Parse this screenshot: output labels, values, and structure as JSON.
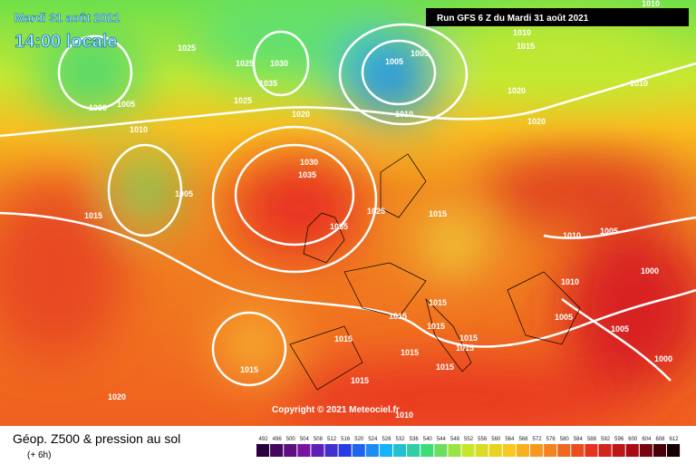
{
  "header": {
    "date": "Mardi 31 août 2021",
    "time": "14:00 locale",
    "run": "Run GFS 6 Z du Mardi 31 août 2021"
  },
  "copyright": "Copyright © 2021 Meteociel.fr",
  "legend": {
    "title": "Géop. Z500 & pression au sol",
    "lead": "(+ 6h)",
    "scale": [
      492,
      496,
      500,
      504,
      508,
      512,
      516,
      520,
      524,
      528,
      532,
      536,
      540,
      544,
      548,
      552,
      556,
      560,
      564,
      568,
      572,
      576,
      580,
      584,
      588,
      592,
      596,
      600,
      604,
      608,
      612
    ]
  },
  "isobar_labels": [
    "1025",
    "1025",
    "1030",
    "1035",
    "1025",
    "1020",
    "1005",
    "1005",
    "1010",
    "1015",
    "1010",
    "1010",
    "1020",
    "1020",
    "1010",
    "1000",
    "1005",
    "1010",
    "1005",
    "1015",
    "1030",
    "1035",
    "1035",
    "1025",
    "1015",
    "1010",
    "1005",
    "1000",
    "1010",
    "1005",
    "1005",
    "1000",
    "1015",
    "1015",
    "1015",
    "1015",
    "1015",
    "1015",
    "1015",
    "1015",
    "1015",
    "1015",
    "1020",
    "1010"
  ]
}
